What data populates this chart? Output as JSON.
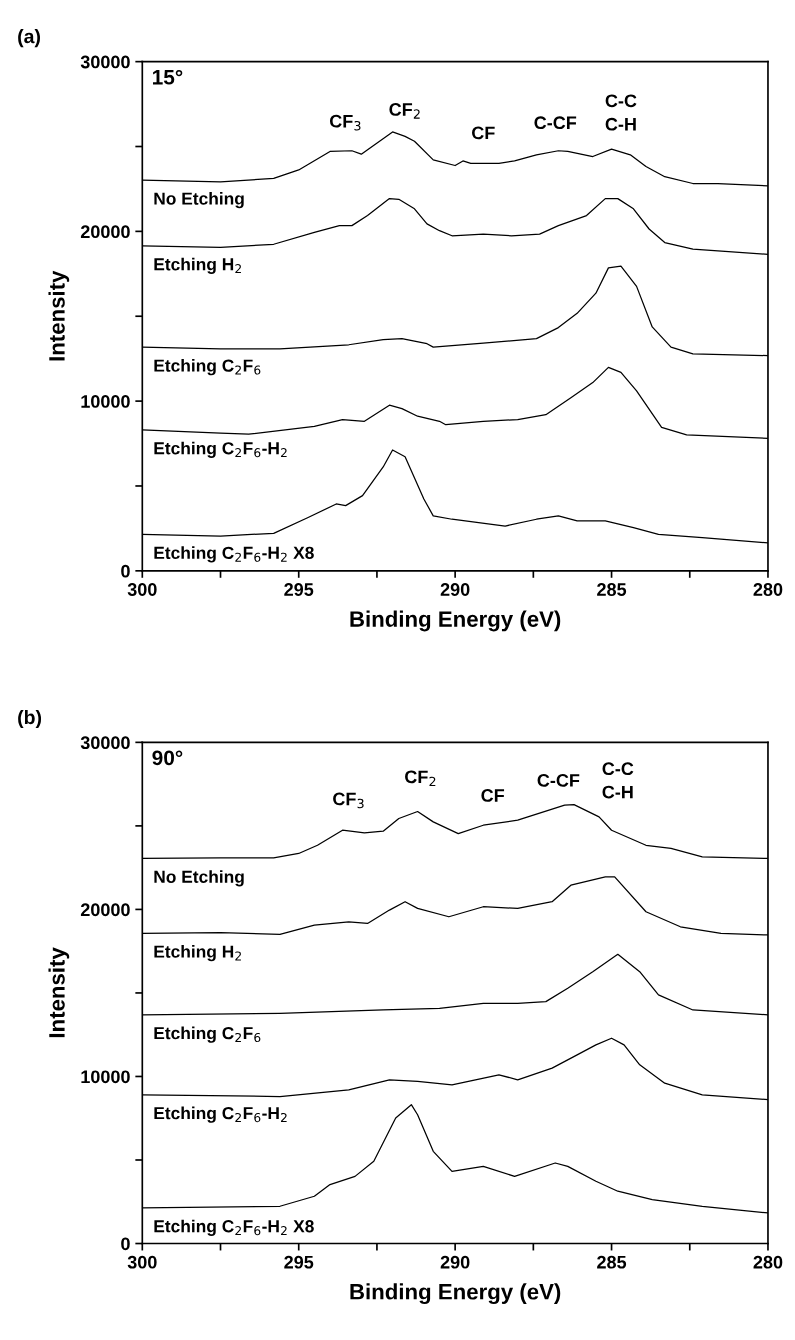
{
  "chart_data": [
    {
      "type": "line",
      "title": "(a)",
      "xlabel": "Binding Energy (eV)",
      "ylabel": "Intensity",
      "xlim": [
        300,
        280
      ],
      "ylim": [
        0,
        30000
      ],
      "xticks": [
        300,
        {
          "value": 297.5,
          "label": null
        },
        295,
        {
          "value": 292.5,
          "label": null
        },
        290,
        {
          "value": 287.5,
          "label": null
        },
        285,
        {
          "value": 282.5,
          "label": null
        },
        280
      ],
      "yticks": [
        0,
        {
          "value": 5000,
          "label": null
        },
        10000,
        {
          "value": 15000,
          "label": null
        },
        20000,
        {
          "value": 25000,
          "label": null
        },
        30000
      ],
      "grid": false,
      "legend": false,
      "annotations": [
        "15°",
        "CF$_{3}$",
        "CF$_{2}$",
        "CF",
        "C-CF",
        "C-C\nC-H"
      ],
      "series": [
        {
          "name": "No Etching",
          "color": "#000000",
          "x": [
            300,
            297.5,
            295.8,
            295,
            294,
            293.3,
            293,
            292,
            291.6,
            291.3,
            290.7,
            290,
            289.75,
            289.5,
            288.6,
            288.1,
            287.4,
            286.7,
            286.4,
            285.6,
            285,
            284.4,
            283.9,
            283.3,
            282.4,
            281.6,
            280
          ],
          "values": [
            23020,
            22920,
            23120,
            23620,
            24710,
            24750,
            24550,
            25860,
            25600,
            25310,
            24210,
            23880,
            24150,
            24010,
            24010,
            24150,
            24510,
            24750,
            24710,
            24410,
            24850,
            24510,
            23820,
            23220,
            22820,
            22820,
            22680
          ]
        },
        {
          "name": "Etching H$_{2}$",
          "color": "#000000",
          "x": [
            300,
            297.5,
            295.8,
            294.5,
            293.7,
            293.3,
            292.8,
            292.1,
            291.8,
            291.3,
            290.9,
            290.5,
            290.1,
            289.1,
            288.2,
            287.3,
            286.7,
            285.8,
            285.2,
            284.8,
            284.3,
            283.8,
            283.3,
            282.4,
            281.6,
            280
          ],
          "values": [
            19150,
            19050,
            19240,
            19940,
            20340,
            20340,
            20930,
            21930,
            21890,
            21330,
            20440,
            20040,
            19740,
            19840,
            19740,
            19840,
            20340,
            20930,
            21930,
            21930,
            21330,
            20140,
            19340,
            18950,
            18850,
            18650
          ]
        },
        {
          "name": "Etching C$_{2}$F$_{6}$",
          "color": "#000000",
          "x": [
            300,
            297.5,
            295.6,
            293.4,
            292.3,
            291.7,
            290.9,
            290.7,
            289.1,
            287.4,
            286.7,
            286.1,
            285.5,
            285.1,
            284.7,
            284.2,
            283.7,
            283.1,
            282.4,
            280
          ],
          "values": [
            13180,
            13080,
            13080,
            13320,
            13620,
            13680,
            13380,
            13180,
            13420,
            13680,
            14330,
            15170,
            16360,
            17850,
            17950,
            16760,
            14370,
            13180,
            12780,
            12680
          ]
        },
        {
          "name": "Etching C$_{2}$F$_{6}$-H$_{2}$",
          "color": "#000000",
          "x": [
            300,
            297.5,
            296.6,
            294.5,
            293.6,
            292.9,
            292.1,
            291.7,
            291.2,
            290.5,
            290.3,
            289.1,
            288,
            287.1,
            286.3,
            285.6,
            285.1,
            284.7,
            284.2,
            283.4,
            282.6,
            280
          ],
          "values": [
            8310,
            8110,
            8050,
            8510,
            8910,
            8810,
            9760,
            9560,
            9110,
            8810,
            8610,
            8810,
            8910,
            9200,
            10200,
            11090,
            11990,
            11690,
            10600,
            8450,
            8010,
            7810
          ]
        },
        {
          "name": "Etching C$_{2}$F$_{6}$-H$_{2}$ X8",
          "color": "#000000",
          "x": [
            300,
            297.5,
            295.8,
            294.7,
            293.8,
            293.5,
            292.96,
            292.3,
            292,
            291.6,
            291,
            290.7,
            290.1,
            288.4,
            287.4,
            286.7,
            286.1,
            285.2,
            284.3,
            283.5,
            282.1,
            280
          ],
          "values": [
            2150,
            2050,
            2210,
            3140,
            3940,
            3840,
            4430,
            6120,
            7120,
            6720,
            4230,
            3240,
            3040,
            2640,
            3040,
            3240,
            2940,
            2940,
            2540,
            2150,
            1950,
            1650
          ]
        }
      ]
    },
    {
      "type": "line",
      "title": "(b)",
      "xlabel": "Binding Energy (eV)",
      "ylabel": "Intensity",
      "xlim": [
        300,
        280
      ],
      "ylim": [
        0,
        30000
      ],
      "xticks": [
        300,
        {
          "value": 297.5,
          "label": null
        },
        295,
        {
          "value": 292.5,
          "label": null
        },
        290,
        {
          "value": 287.5,
          "label": null
        },
        285,
        {
          "value": 282.5,
          "label": null
        },
        280
      ],
      "yticks": [
        0,
        {
          "value": 5000,
          "label": null
        },
        10000,
        {
          "value": 15000,
          "label": null
        },
        20000,
        {
          "value": 25000,
          "label": null
        },
        30000
      ],
      "grid": false,
      "legend": false,
      "annotations": [
        "90°",
        "CF$_{3}$",
        "CF$_{2}$",
        "CF",
        "C-CF",
        "C-C\nC-H"
      ],
      "series": [
        {
          "name": "No Etching",
          "color": "#000000",
          "x": [
            300,
            297.5,
            295.8,
            295,
            294.4,
            293.6,
            292.9,
            292.3,
            291.8,
            291.2,
            290.7,
            289.9,
            289.1,
            288,
            286.5,
            286.2,
            285.4,
            285,
            283.9,
            283.1,
            282.1,
            280
          ],
          "values": [
            23050,
            23090,
            23090,
            23350,
            23840,
            24740,
            24580,
            24680,
            25440,
            25860,
            25240,
            24540,
            25040,
            25340,
            26240,
            26270,
            25540,
            24740,
            23840,
            23650,
            23150,
            23050
          ]
        },
        {
          "name": "Etching H$_{2}$",
          "color": "#000000",
          "x": [
            300,
            297.5,
            295.6,
            294.5,
            293.4,
            292.8,
            292.1,
            291.6,
            291.2,
            290.2,
            289.1,
            288,
            286.9,
            286.3,
            285.2,
            284.9,
            283.9,
            282.8,
            281.5,
            280
          ],
          "values": [
            18570,
            18610,
            18510,
            19060,
            19260,
            19160,
            19960,
            20460,
            20060,
            19560,
            20160,
            20060,
            20460,
            21450,
            21950,
            21950,
            19860,
            18960,
            18570,
            18470
          ]
        },
        {
          "name": "Etching C$_{2}$F$_{6}$",
          "color": "#000000",
          "x": [
            300,
            295.6,
            292.3,
            290.5,
            289.1,
            288,
            287.1,
            286.4,
            285.6,
            284.8,
            284.1,
            283.5,
            282.4,
            280
          ],
          "values": [
            13690,
            13780,
            13980,
            14080,
            14380,
            14380,
            14480,
            15280,
            16270,
            17310,
            16270,
            14880,
            13980,
            13690
          ]
        },
        {
          "name": "Etching C$_{2}$F$_{6}$-H$_{2}$",
          "color": "#000000",
          "x": [
            300,
            295.6,
            293.4,
            292.1,
            291.2,
            290.1,
            288.6,
            288,
            286.9,
            286.1,
            285.5,
            285,
            284.6,
            284.1,
            283.3,
            282.1,
            280
          ],
          "values": [
            8900,
            8800,
            9200,
            9800,
            9700,
            9500,
            10100,
            9800,
            10500,
            11290,
            11890,
            12290,
            11890,
            10700,
            9600,
            8900,
            8610
          ]
        },
        {
          "name": "Etching C$_{2}$F$_{6}$-H$_{2}$ X8",
          "color": "#000000",
          "x": [
            300,
            295.6,
            294.5,
            294,
            293.2,
            292.6,
            291.9,
            291.4,
            291.2,
            290.7,
            290.1,
            289.1,
            288.1,
            286.8,
            286.4,
            285.5,
            284.8,
            283.7,
            282.1,
            280
          ],
          "values": [
            2130,
            2230,
            2830,
            3530,
            4020,
            4920,
            7510,
            8310,
            7710,
            5520,
            4320,
            4620,
            4020,
            4820,
            4620,
            3730,
            3130,
            2630,
            2230,
            1830
          ]
        }
      ]
    }
  ]
}
